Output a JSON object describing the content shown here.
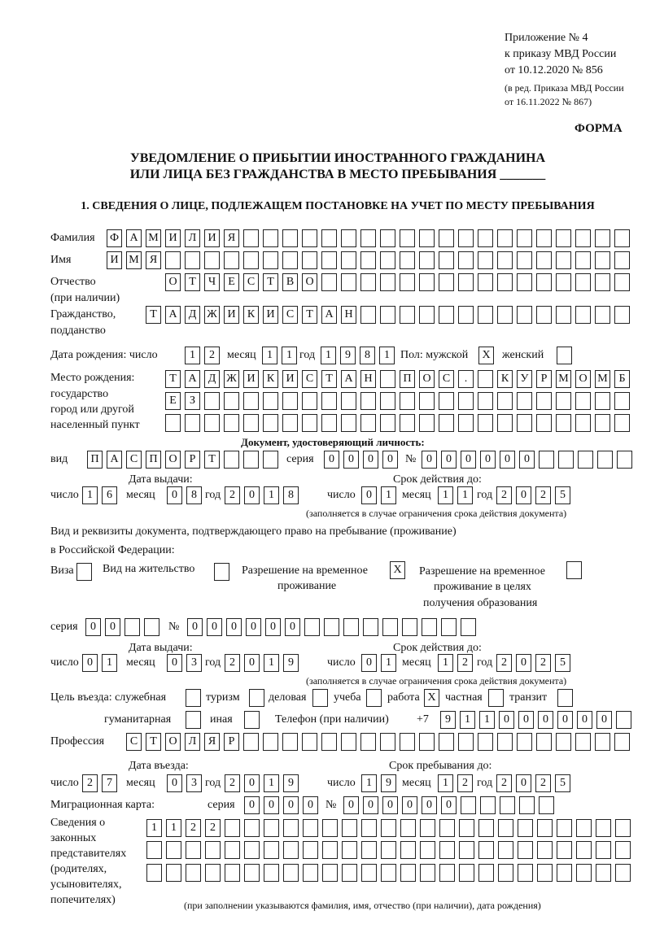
{
  "header": {
    "appendix": "Приложение № 4",
    "order": "к приказу МВД России",
    "order_date": "от 10.12.2020 № 856",
    "edition": "(в ред. Приказа МВД России",
    "edition_date": "от 16.11.2022 № 867)",
    "form_label": "ФОРМА",
    "title_line1": "УВЕДОМЛЕНИЕ О ПРИБЫТИИ ИНОСТРАННОГО ГРАЖДАНИНА",
    "title_line2": "ИЛИ ЛИЦА БЕЗ ГРАЖДАНСТВА В МЕСТО ПРЕБЫВАНИЯ _______",
    "section1": "1. СВЕДЕНИЯ О ЛИЦЕ, ПОДЛЕЖАЩЕМ ПОСТАНОВКЕ НА УЧЕТ ПО МЕСТУ ПРЕБЫВАНИЯ"
  },
  "labels": {
    "surname": "Фамилия",
    "name": "Имя",
    "patronymic": "Отчество",
    "patronymic_note": "(при наличии)",
    "citizenship": "Гражданство,",
    "citizenship2": "подданство",
    "birth_date": "Дата рождения:  число",
    "month": "месяц",
    "year": "год",
    "day": "число",
    "sex": "Пол: мужской",
    "female": "женский",
    "birth_place": "Место рождения:",
    "birth_place2": "государство",
    "birth_place3": "город или другой",
    "birth_place4": "населенный пункт",
    "id_doc": "Документ, удостоверяющий личность:",
    "kind": "вид",
    "series": "серия",
    "number": "№",
    "issue_date": "Дата выдачи:",
    "valid_until": "Срок действия до:",
    "validity_note": "(заполняется в случае ограничения срока действия документа)",
    "right_doc": "Вид и реквизиты документа, подтверждающего право на пребывание (проживание)",
    "right_doc2": "в Российской Федерации:",
    "visa": "Виза",
    "residence": "Вид на жительство",
    "trp": "Разрешение на временное",
    "trp2": "проживание",
    "trp_edu": "Разрешение на временное",
    "trp_edu2": "проживание в целях",
    "trp_edu3": "получения образования",
    "purpose": "Цель въезда: служебная",
    "tourism": "туризм",
    "business": "деловая",
    "study": "учеба",
    "work": "работа",
    "private": "частная",
    "transit": "транзит",
    "humanitarian": "гуманитарная",
    "other": "иная",
    "phone": "Телефон (при наличии)",
    "phone_prefix": "+7",
    "profession": "Профессия",
    "entry_date": "Дата въезда:",
    "stay_until": "Срок пребывания до:",
    "migration_card": "Миграционная карта:",
    "reps1": "Сведения о",
    "reps2": "законных",
    "reps3": "представителях",
    "reps4": "(родителях,",
    "reps5": "усыновителях,",
    "reps6": "попечителях)",
    "reps_note": "(при заполнении указываются фамилия, имя, отчество (при наличии), дата рождения)"
  },
  "values": {
    "surname": "ФАМИЛИЯ",
    "name": "ИМЯ",
    "patronymic": "ОТЧЕСТВО",
    "citizenship": "ТАДЖИКИСТАН",
    "birth_day": "12",
    "birth_month": "11",
    "birth_year": "1981",
    "sex_male": "X",
    "sex_female": "",
    "birth_place_1": "ТАДЖИКИСТАН ПОС. КУРМОМБ",
    "birth_place_2": "ЕЗ",
    "birth_place_3": "",
    "id_kind": "ПАСПОРТ",
    "id_series": "0000",
    "id_number": "000000",
    "id_issue_day": "16",
    "id_issue_month": "08",
    "id_issue_year": "2018",
    "id_valid_day": "01",
    "id_valid_month": "11",
    "id_valid_year": "2025",
    "visa": "",
    "residence": "",
    "trp": "X",
    "trp_edu": "",
    "rd_series": "00",
    "rd_number": "000000",
    "rd_issue_day": "01",
    "rd_issue_month": "03",
    "rd_issue_year": "2019",
    "rd_valid_day": "01",
    "rd_valid_month": "12",
    "rd_valid_year": "2025",
    "p_service": "",
    "p_tourism": "",
    "p_business": "",
    "p_study": "",
    "p_work": "X",
    "p_private": "",
    "p_transit": "",
    "p_humanitarian": "",
    "p_other": "",
    "phone": "911000000",
    "profession": "СТОЛЯР",
    "entry_day": "27",
    "entry_month": "03",
    "entry_year": "2019",
    "stay_day": "19",
    "stay_month": "12",
    "stay_year": "2025",
    "mc_series": "0000",
    "mc_number": "000000",
    "reps_1": "1122",
    "reps_2": "",
    "reps_3": ""
  }
}
